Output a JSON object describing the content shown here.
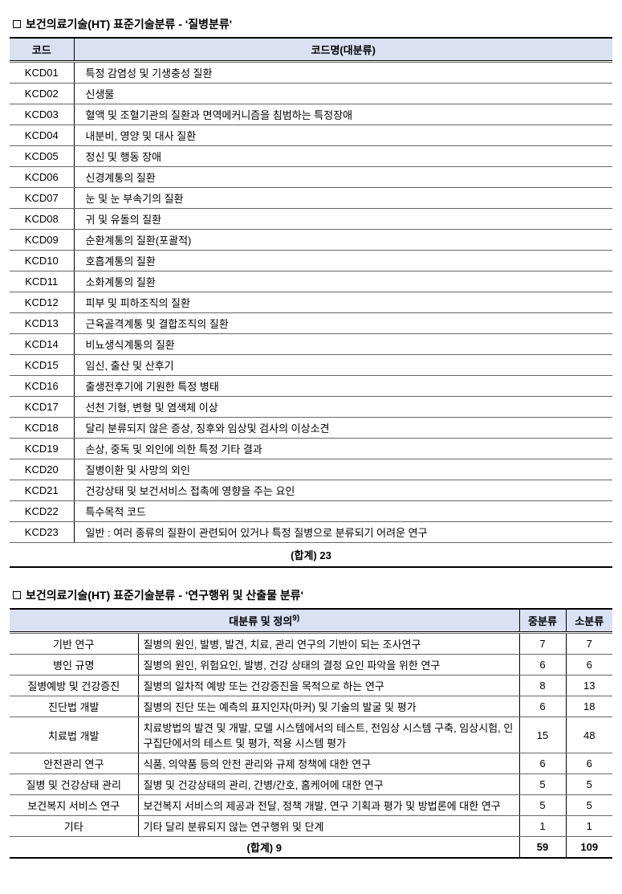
{
  "styles": {
    "header_bg": "#d9e1f2",
    "border_color": "#000000",
    "row_border": "#666666",
    "font_family": "Malgun Gothic",
    "body_font_size": 13,
    "title_font_size": 14
  },
  "table1": {
    "title_prefix": "보건의료기술(HT) 표준기술분류  - '",
    "title_suffix": "질병분류'",
    "headers": {
      "code": "코드",
      "name": "코드명(대분류)"
    },
    "rows": [
      {
        "code": "KCD01",
        "name": "특정 감염성 및 기생충성 질환"
      },
      {
        "code": "KCD02",
        "name": "신생물"
      },
      {
        "code": "KCD03",
        "name": "혈액 및 조혈기관의 질환과   면역메커니즘을 침범하는 특정장애"
      },
      {
        "code": "KCD04",
        "name": "내분비, 영양 및 대사 질환"
      },
      {
        "code": "KCD05",
        "name": "정신 및 행동 장애"
      },
      {
        "code": "KCD06",
        "name": "신경계통의 질환"
      },
      {
        "code": "KCD07",
        "name": "눈 및 눈 부속기의 질환"
      },
      {
        "code": "KCD08",
        "name": "귀 및 유돌의 질환"
      },
      {
        "code": "KCD09",
        "name": "순환계통의 질환(포괄적)"
      },
      {
        "code": "KCD10",
        "name": "호흡계통의 질환"
      },
      {
        "code": "KCD11",
        "name": "소화계통의 질환"
      },
      {
        "code": "KCD12",
        "name": "피부 및 피하조직의 질환"
      },
      {
        "code": "KCD13",
        "name": "근육골격계통 및 결합조직의 질환"
      },
      {
        "code": "KCD14",
        "name": "비뇨생식계통의 질환"
      },
      {
        "code": "KCD15",
        "name": "임신, 출산 및 산후기"
      },
      {
        "code": "KCD16",
        "name": "출생전후기에 기원한 특정 병태"
      },
      {
        "code": "KCD17",
        "name": "선천 기형, 변형 및 염색체 이상"
      },
      {
        "code": "KCD18",
        "name": "달리 분류되지 않은 증상, 징후와   임상및 검사의 이상소견"
      },
      {
        "code": "KCD19",
        "name": "손상, 중독 및 외인에 의한 특정 기타   결과"
      },
      {
        "code": "KCD20",
        "name": "질병이환 및 사망의 외인"
      },
      {
        "code": "KCD21",
        "name": "건강상태 및 보건서비스 접촉에 영향을   주는 요인"
      },
      {
        "code": "KCD22",
        "name": "특수목적 코드"
      },
      {
        "code": "KCD23",
        "name": "일반 : 여러 종류의 질환이 관련되어 있거나 특정 질병으로 분류되기 어려운 연구"
      }
    ],
    "total_label": "(합계) 23"
  },
  "table2": {
    "title_prefix": "보건의료기술(HT) 표준기술분류  - '",
    "title_suffix": "연구행위 및 산출물 분류'",
    "headers": {
      "main": "대분류 및 정의",
      "main_sup": "9)",
      "mid": "중분류",
      "small": "소분류"
    },
    "rows": [
      {
        "cat": "기반 연구",
        "def": "질병의 원인, 발병, 발견, 치료, 관리 연구의 기반이 되는 조사연구",
        "mid": "7",
        "small": "7"
      },
      {
        "cat": "병인 규명",
        "def": "질병의 원인, 위험요인, 발병, 건강 상태의 결정 요인 파악을 위한 연구",
        "mid": "6",
        "small": "6"
      },
      {
        "cat": "질병예방 및 건강증진",
        "def": "질병의 일차적 예방 또는 건강증진을 목적으로 하는 연구",
        "mid": "8",
        "small": "13"
      },
      {
        "cat": "진단법 개발",
        "def": "질병의 진단 또는 예측의 표지인자(마커) 및 기술의 발굴 및 평가",
        "mid": "6",
        "small": "18"
      },
      {
        "cat": "치료법 개발",
        "def": "치료방법의 발견 및 개발, 모델 시스템에서의 테스트, 전임상 시스템 구축, 임상시험, 인구집단에서의 테스트 및 평가, 적용 시스템 평가",
        "mid": "15",
        "small": "48"
      },
      {
        "cat": "안전관리 연구",
        "def": "식품, 의약품 등의 안전 관리와 규제 정책에 대한 연구",
        "mid": "6",
        "small": "6"
      },
      {
        "cat": "질병 및 건강상태 관리",
        "def": "질병 및 건강상태의 관리, 간병/간호, 홈케어에 대한 연구",
        "mid": "5",
        "small": "5"
      },
      {
        "cat": "보건복지 서비스 연구",
        "def": "보건복지 서비스의 제공과 전달, 정책 개발, 연구 기획과 평가 및 방법론에 대한 연구",
        "mid": "5",
        "small": "5"
      },
      {
        "cat": "기타",
        "def": "기타 달리 분류되지 않는 연구행위 및 단계",
        "mid": "1",
        "small": "1"
      }
    ],
    "total": {
      "label": "(합계) 9",
      "mid": "59",
      "small": "109"
    }
  }
}
